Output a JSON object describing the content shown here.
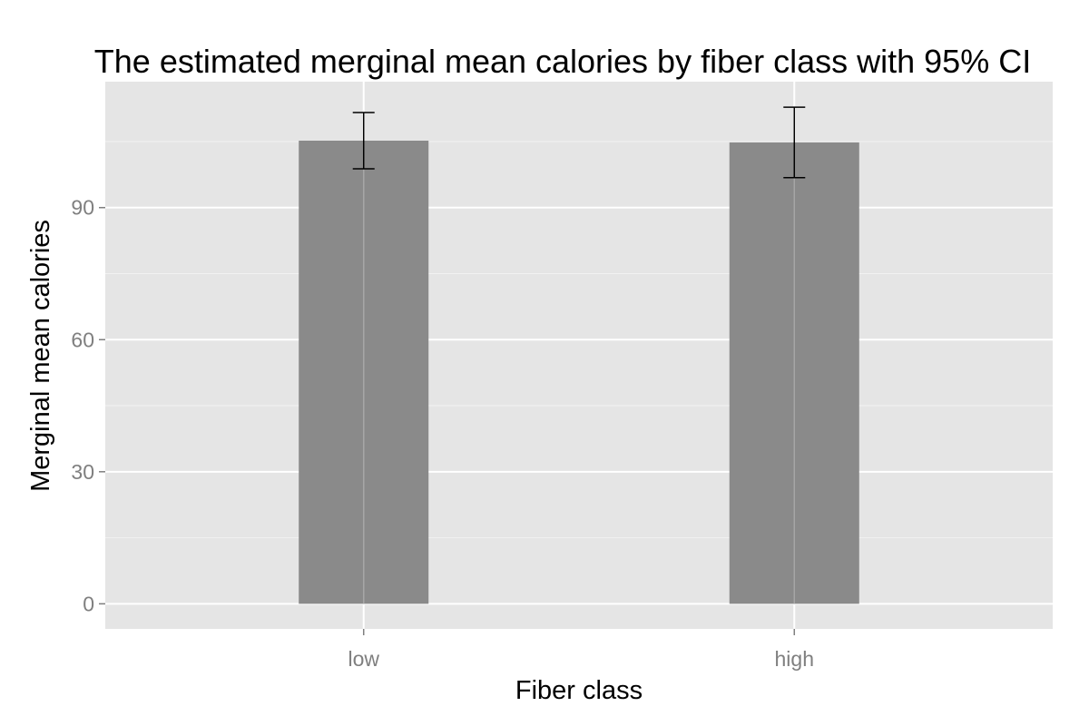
{
  "chart_data": {
    "type": "bar",
    "title": "The estimated merginal mean calories by fiber class with 95% CI",
    "xlabel": "Fiber class",
    "ylabel": "Merginal mean calories",
    "categories": [
      "low",
      "high"
    ],
    "values": [
      105.2,
      104.8
    ],
    "error_bars": [
      {
        "lower": 98.8,
        "upper": 111.6
      },
      {
        "lower": 96.8,
        "upper": 112.8
      }
    ],
    "yticks": [
      "0",
      "30",
      "60",
      "90"
    ],
    "ytick_values": [
      0,
      30,
      60,
      90
    ],
    "ylim": [
      -5.7,
      118.6
    ],
    "grid": true,
    "legend": "none",
    "colors": {
      "panel_background": "#e5e5e5",
      "grid_major": "#ffffff",
      "grid_minor": "#f2f2f2",
      "bar_fill": "#8a8a8a",
      "error_bar": "#000000",
      "tick_label": "#7f7f7f",
      "tick_mark": "#7f7f7f"
    }
  }
}
